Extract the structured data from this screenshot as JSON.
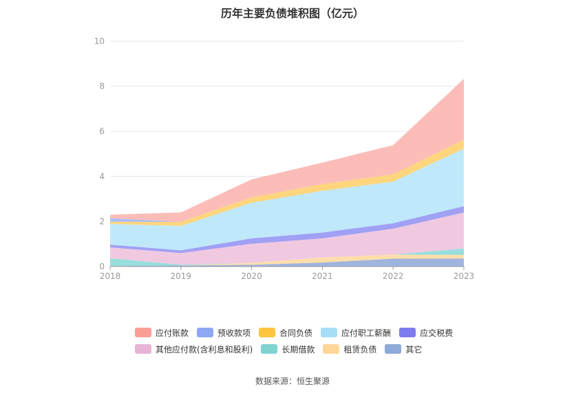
{
  "chart_data": {
    "type": "area",
    "stacked": true,
    "title": "历年主要负债堆积图（亿元）",
    "x": [
      "2018",
      "2019",
      "2020",
      "2021",
      "2022",
      "2023"
    ],
    "ylim": [
      0,
      10
    ],
    "yticks": [
      "0",
      "2",
      "4",
      "6",
      "8",
      "10"
    ],
    "grid": true,
    "legend_position": "bottom",
    "series": [
      {
        "name": "其它",
        "color": "#8fa8d8",
        "values": [
          0.02,
          0.05,
          0.08,
          0.18,
          0.35,
          0.36
        ]
      },
      {
        "name": "租赁负债",
        "color": "#ffd89a",
        "values": [
          0.0,
          0.0,
          0.08,
          0.22,
          0.18,
          0.16
        ]
      },
      {
        "name": "长期借款",
        "color": "#86d8d6",
        "values": [
          0.35,
          0.03,
          0.0,
          0.0,
          0.0,
          0.28
        ]
      },
      {
        "name": "其他应付款(含利息和股利)",
        "color": "#edc0dc",
        "values": [
          0.48,
          0.52,
          0.85,
          0.85,
          1.15,
          1.6
        ]
      },
      {
        "name": "应交税费",
        "color": "#8f8ff2",
        "values": [
          0.12,
          0.12,
          0.24,
          0.26,
          0.24,
          0.28
        ]
      },
      {
        "name": "应付职工薪酬",
        "color": "#b5e4fa",
        "values": [
          0.92,
          1.08,
          1.58,
          1.85,
          1.85,
          2.55
        ]
      },
      {
        "name": "合同负债",
        "color": "#ffcf66",
        "values": [
          0.1,
          0.18,
          0.24,
          0.3,
          0.32,
          0.4
        ]
      },
      {
        "name": "预收款项",
        "color": "#9fb4f5",
        "values": [
          0.16,
          0.0,
          0.0,
          0.0,
          0.0,
          0.0
        ]
      },
      {
        "name": "应付账款",
        "color": "#fbb1ab",
        "values": [
          0.15,
          0.42,
          0.8,
          0.95,
          1.3,
          2.7
        ]
      }
    ]
  },
  "legend_rows": [
    [
      {
        "label": "应付账款",
        "color": "#fb9e96"
      },
      {
        "label": "预收款项",
        "color": "#8ea7f2"
      },
      {
        "label": "合同负债",
        "color": "#ffc53d"
      },
      {
        "label": "应付职工薪酬",
        "color": "#a6def8"
      },
      {
        "label": "应交税费",
        "color": "#7d7cee"
      }
    ],
    [
      {
        "label": "其他应付款(含利息和股利)",
        "color": "#e8b4d6"
      },
      {
        "label": "长期借款",
        "color": "#7fd3d1"
      },
      {
        "label": "租赁负债",
        "color": "#ffd799"
      },
      {
        "label": "其它",
        "color": "#8eaad8"
      }
    ]
  ],
  "source_note": "数据来源：恒生聚源"
}
